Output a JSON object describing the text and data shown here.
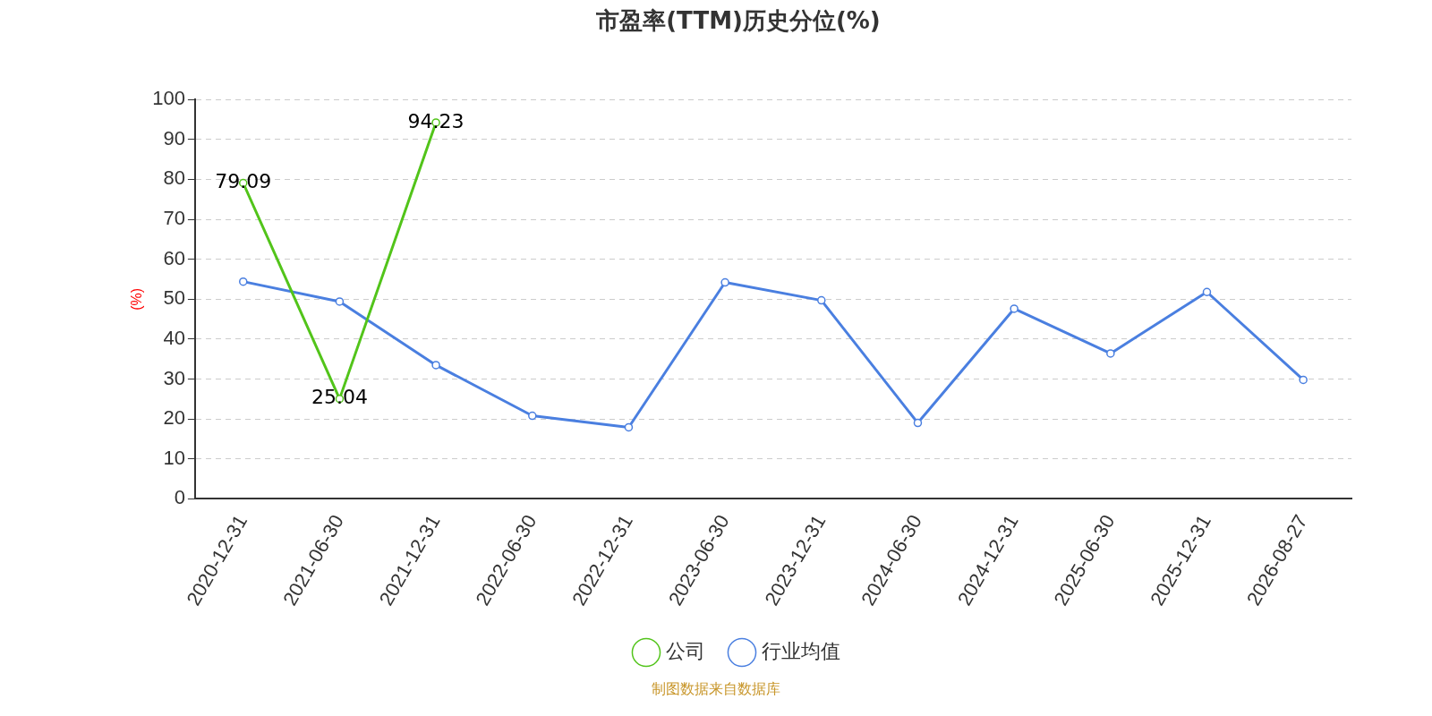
{
  "chart_data": {
    "type": "line",
    "title": "市盈率(TTM)历史分位(%)",
    "ylabel": "(%)",
    "categories": [
      "2020-12-31",
      "2021-06-30",
      "2021-12-31",
      "2022-06-30",
      "2022-12-31",
      "2023-06-30",
      "2023-12-31",
      "2024-06-30",
      "2024-12-31",
      "2025-06-30",
      "2025-12-31",
      "2026-08-27"
    ],
    "series": [
      {
        "name": "公司",
        "color": "#52c41a",
        "values": [
          79.09,
          25.04,
          94.23,
          null,
          null,
          null,
          null,
          null,
          null,
          null,
          null,
          null
        ],
        "value_labels": [
          "79.09",
          "25.04",
          "94.23",
          null,
          null,
          null,
          null,
          null,
          null,
          null,
          null,
          null
        ]
      },
      {
        "name": "行业均值",
        "color": "#4a7fe0",
        "values": [
          54.4,
          49.4,
          33.5,
          20.8,
          17.9,
          54.2,
          49.7,
          19.0,
          47.6,
          36.4,
          51.8,
          29.8
        ]
      }
    ],
    "ylim": [
      0,
      100
    ],
    "yticks": [
      0,
      10,
      20,
      30,
      40,
      50,
      60,
      70,
      80,
      90,
      100
    ],
    "grid": "y",
    "legend": "bottom",
    "marker": "circle",
    "line_style": "solid",
    "annotations": [
      "制图数据来自数据库"
    ]
  }
}
